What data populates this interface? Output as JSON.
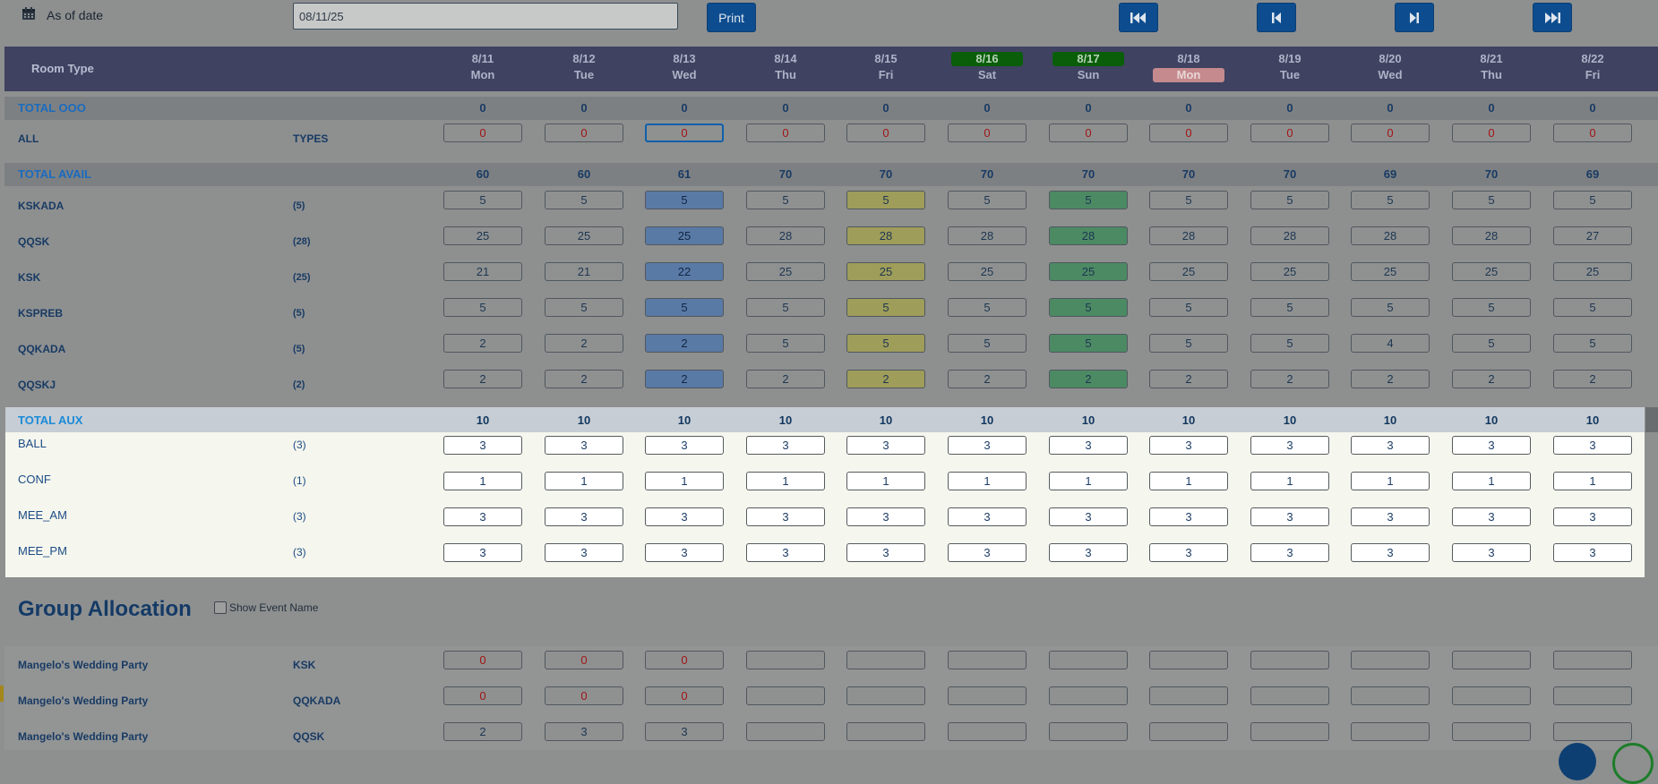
{
  "toolbar": {
    "as_of_label": "As of date",
    "date_value": "08/11/25",
    "print_label": "Print"
  },
  "header": {
    "room_type_label": "Room Type",
    "dates": [
      {
        "date": "8/11",
        "weekday": "Mon",
        "weekend": false,
        "holiday": false
      },
      {
        "date": "8/12",
        "weekday": "Tue",
        "weekend": false,
        "holiday": false
      },
      {
        "date": "8/13",
        "weekday": "Wed",
        "weekend": false,
        "holiday": false
      },
      {
        "date": "8/14",
        "weekday": "Thu",
        "weekend": false,
        "holiday": false
      },
      {
        "date": "8/15",
        "weekday": "Fri",
        "weekend": false,
        "holiday": false
      },
      {
        "date": "8/16",
        "weekday": "Sat",
        "weekend": true,
        "holiday": false
      },
      {
        "date": "8/17",
        "weekday": "Sun",
        "weekend": true,
        "holiday": false
      },
      {
        "date": "8/18",
        "weekday": "Mon",
        "weekend": false,
        "holiday": true
      },
      {
        "date": "8/19",
        "weekday": "Tue",
        "weekend": false,
        "holiday": false
      },
      {
        "date": "8/20",
        "weekday": "Wed",
        "weekend": false,
        "holiday": false
      },
      {
        "date": "8/21",
        "weekday": "Thu",
        "weekend": false,
        "holiday": false
      },
      {
        "date": "8/22",
        "weekday": "Fri",
        "weekend": false,
        "holiday": false
      }
    ]
  },
  "total_ooo": {
    "label": "TOTAL OOO",
    "values": [
      "0",
      "0",
      "0",
      "0",
      "0",
      "0",
      "0",
      "0",
      "0",
      "0",
      "0",
      "0"
    ]
  },
  "all_types": {
    "label": "ALL",
    "sub": "TYPES",
    "values": [
      "0",
      "0",
      "0",
      "0",
      "0",
      "0",
      "0",
      "0",
      "0",
      "0",
      "0",
      "0"
    ]
  },
  "total_avail": {
    "label": "TOTAL AVAIL",
    "values": [
      "60",
      "60",
      "61",
      "70",
      "70",
      "70",
      "70",
      "70",
      "70",
      "69",
      "70",
      "69"
    ]
  },
  "room_rows": [
    {
      "name": "KSKADA",
      "count": "(5)",
      "values": [
        "5",
        "5",
        "5",
        "5",
        "5",
        "5",
        "5",
        "5",
        "5",
        "5",
        "5",
        "5"
      ]
    },
    {
      "name": "QQSK",
      "count": "(28)",
      "values": [
        "25",
        "25",
        "25",
        "28",
        "28",
        "28",
        "28",
        "28",
        "28",
        "28",
        "28",
        "27"
      ]
    },
    {
      "name": "KSK",
      "count": "(25)",
      "values": [
        "21",
        "21",
        "22",
        "25",
        "25",
        "25",
        "25",
        "25",
        "25",
        "25",
        "25",
        "25"
      ]
    },
    {
      "name": "KSPREB",
      "count": "(5)",
      "values": [
        "5",
        "5",
        "5",
        "5",
        "5",
        "5",
        "5",
        "5",
        "5",
        "5",
        "5",
        "5"
      ]
    },
    {
      "name": "QQKADA",
      "count": "(5)",
      "values": [
        "2",
        "2",
        "2",
        "5",
        "5",
        "5",
        "5",
        "5",
        "5",
        "4",
        "5",
        "5"
      ]
    },
    {
      "name": "QQSKJ",
      "count": "(2)",
      "values": [
        "2",
        "2",
        "2",
        "2",
        "2",
        "2",
        "2",
        "2",
        "2",
        "2",
        "2",
        "2"
      ]
    }
  ],
  "column_highlights": [
    "",
    "",
    "blue",
    "",
    "yellow",
    "",
    "green",
    "",
    "",
    "",
    "",
    ""
  ],
  "total_aux": {
    "label": "TOTAL AUX",
    "values": [
      "10",
      "10",
      "10",
      "10",
      "10",
      "10",
      "10",
      "10",
      "10",
      "10",
      "10",
      "10"
    ]
  },
  "aux_rows": [
    {
      "name": "BALL",
      "count": "(3)",
      "values": [
        "3",
        "3",
        "3",
        "3",
        "3",
        "3",
        "3",
        "3",
        "3",
        "3",
        "3",
        "3"
      ]
    },
    {
      "name": "CONF",
      "count": "(1)",
      "values": [
        "1",
        "1",
        "1",
        "1",
        "1",
        "1",
        "1",
        "1",
        "1",
        "1",
        "1",
        "1"
      ]
    },
    {
      "name": "MEE_AM",
      "count": "(3)",
      "values": [
        "3",
        "3",
        "3",
        "3",
        "3",
        "3",
        "3",
        "3",
        "3",
        "3",
        "3",
        "3"
      ]
    },
    {
      "name": "MEE_PM",
      "count": "(3)",
      "values": [
        "3",
        "3",
        "3",
        "3",
        "3",
        "3",
        "3",
        "3",
        "3",
        "3",
        "3",
        "3"
      ]
    }
  ],
  "group_allocation": {
    "title": "Group Allocation",
    "show_event_label": "Show Event Name",
    "rows": [
      {
        "name": "Mangelo's Wedding Party",
        "type": "KSK",
        "values": [
          "0",
          "0",
          "0",
          "",
          "",
          "",
          "",
          "",
          "",
          "",
          "",
          ""
        ],
        "red": true
      },
      {
        "name": "Mangelo's Wedding Party",
        "type": "QQKADA",
        "values": [
          "0",
          "0",
          "0",
          "",
          "",
          "",
          "",
          "",
          "",
          "",
          "",
          ""
        ],
        "red": true
      },
      {
        "name": "Mangelo's Wedding Party",
        "type": "QQSK",
        "values": [
          "2",
          "3",
          "3",
          "",
          "",
          "",
          "",
          "",
          "",
          "",
          "",
          ""
        ],
        "red": false
      }
    ]
  },
  "icons": {
    "calendar": "calendar-icon",
    "first": "skip-first-icon",
    "prev": "step-back-icon",
    "next": "step-forward-icon",
    "last": "skip-last-icon"
  }
}
